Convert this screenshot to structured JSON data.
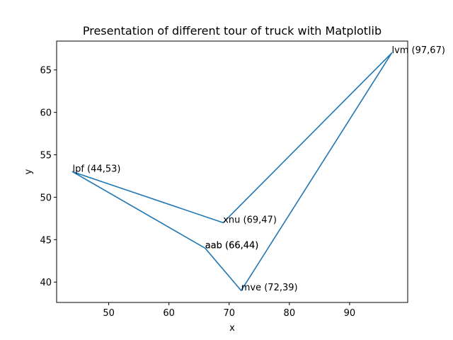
{
  "chart_data": {
    "type": "line",
    "title": "Presentation of different tour of truck with Matplotlib",
    "xlabel": "x",
    "ylabel": "y",
    "xlim": [
      41.35,
      99.65
    ],
    "ylim": [
      37.6,
      68.4
    ],
    "xticks": [
      50,
      60,
      70,
      80,
      90
    ],
    "yticks": [
      40,
      45,
      50,
      55,
      60,
      65
    ],
    "grid": false,
    "series": [
      {
        "color": "#1f77b4",
        "x": [
          44,
          69,
          97,
          72,
          66,
          44
        ],
        "y": [
          53,
          47,
          67,
          39,
          44,
          53
        ]
      }
    ],
    "annotations": [
      {
        "text": "lpf (44,53)",
        "x": 44,
        "y": 53
      },
      {
        "text": "xnu (69,47)",
        "x": 69,
        "y": 47
      },
      {
        "text": "lvm (97,67)",
        "x": 97,
        "y": 67
      },
      {
        "text": "mve (72,39)",
        "x": 72,
        "y": 39
      },
      {
        "text": "aab (66,44)",
        "x": 66,
        "y": 44
      },
      {
        "text": "aab (66,44)",
        "x": 66,
        "y": 44
      }
    ]
  }
}
